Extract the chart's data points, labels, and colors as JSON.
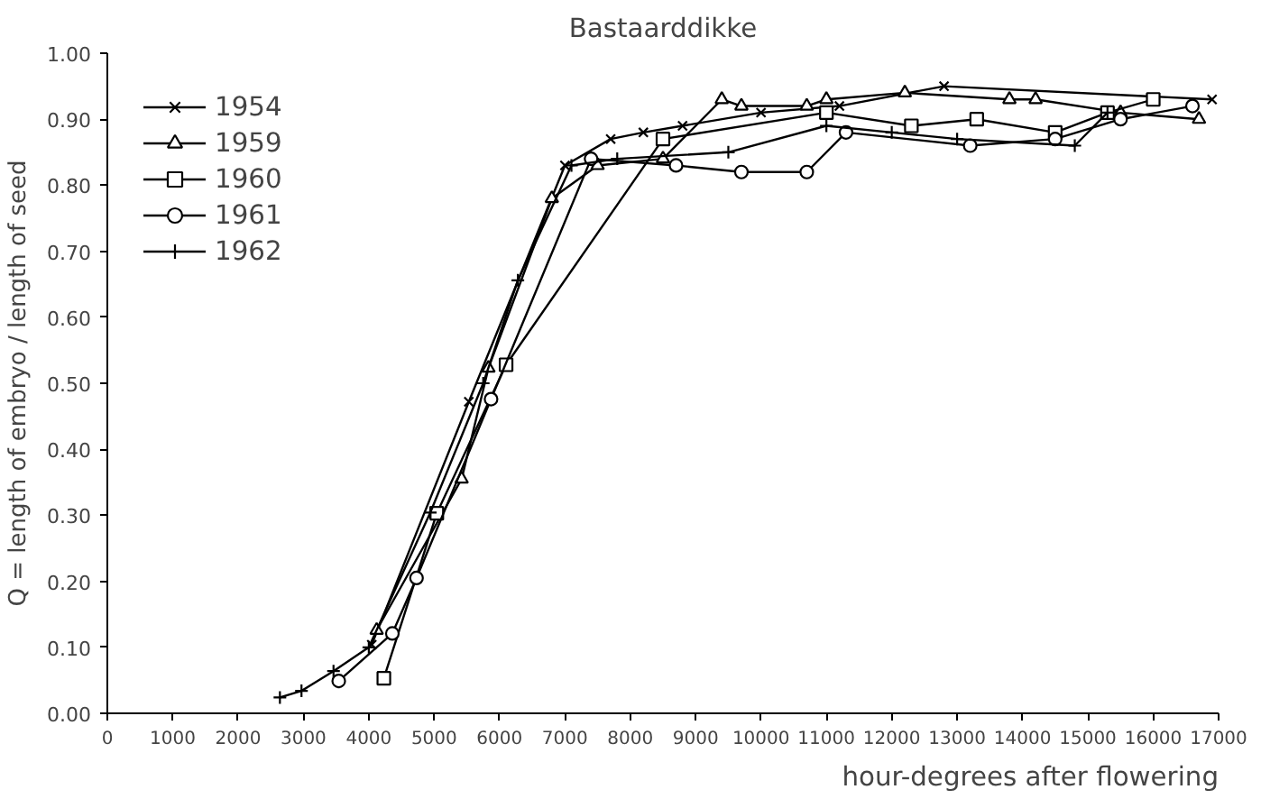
{
  "chart_data": {
    "type": "line",
    "title": "Bastaarddikke",
    "xlabel": "hour-degrees after flowering",
    "ylabel": "Q = length of embryo / length of seed",
    "xlim": [
      0,
      17000
    ],
    "xticks": [
      0,
      1000,
      2000,
      3000,
      4000,
      5000,
      6000,
      7000,
      8000,
      9000,
      10000,
      11000,
      12000,
      13000,
      14000,
      15000,
      16000,
      17000
    ],
    "ylim": [
      0,
      1
    ],
    "yticks": [
      {
        "value": 0,
        "label": "0.00"
      },
      {
        "value": 0.1,
        "label": "0.10"
      },
      {
        "value": 0.2,
        "label": "0.20"
      },
      {
        "value": 0.3,
        "label": "0.30"
      },
      {
        "value": 0.4,
        "label": "0.40"
      },
      {
        "value": 0.5,
        "label": "0.50"
      },
      {
        "value": 0.6,
        "label": "0.60"
      },
      {
        "value": 0.7,
        "label": "0.70"
      },
      {
        "value": 0.8,
        "label": "0.80"
      },
      {
        "value": 0.9,
        "label": "0.90"
      },
      {
        "value": 1,
        "label": "1.00"
      }
    ],
    "grid": false,
    "legend": "top left",
    "line_style": "solid",
    "series": [
      {
        "name": "1954",
        "color": "#000000",
        "marker": "x",
        "x": [
          4045,
          5530,
          7000,
          7700,
          8200,
          8800,
          10000,
          11200,
          12800,
          16900
        ],
        "values": [
          0.104,
          0.472,
          0.83,
          0.87,
          0.88,
          0.89,
          0.91,
          0.92,
          0.95,
          0.93
        ]
      },
      {
        "name": "1959",
        "color": "#000000",
        "marker": "triangle",
        "x": [
          4120,
          5420,
          5830,
          6800,
          7500,
          8500,
          9400,
          9700,
          10700,
          11000,
          12200,
          13800,
          14200,
          15500,
          16700
        ],
        "values": [
          0.126,
          0.355,
          0.523,
          0.78,
          0.83,
          0.84,
          0.93,
          0.92,
          0.92,
          0.93,
          0.94,
          0.93,
          0.93,
          0.91,
          0.9
        ]
      },
      {
        "name": "1960",
        "color": "#000000",
        "marker": "square",
        "x": [
          4230,
          5040,
          6100,
          8500,
          11000,
          12300,
          13300,
          14500,
          15300,
          16000
        ],
        "values": [
          0.053,
          0.303,
          0.528,
          0.87,
          0.91,
          0.89,
          0.9,
          0.88,
          0.91,
          0.93
        ]
      },
      {
        "name": "1961",
        "color": "#000000",
        "marker": "circle",
        "x": [
          3540,
          4360,
          4730,
          5870,
          7400,
          8700,
          9700,
          10700,
          11300,
          13200,
          14500,
          15500,
          16600
        ],
        "values": [
          0.049,
          0.121,
          0.205,
          0.476,
          0.84,
          0.83,
          0.82,
          0.82,
          0.88,
          0.86,
          0.87,
          0.9,
          0.92
        ]
      },
      {
        "name": "1962",
        "color": "#000000",
        "marker": "cross",
        "x": [
          2640,
          2970,
          3460,
          4000,
          4940,
          5750,
          6280,
          7100,
          7800,
          9500,
          11000,
          12000,
          13000,
          14800,
          15300
        ],
        "values": [
          0.024,
          0.034,
          0.064,
          0.1,
          0.304,
          0.5,
          0.656,
          0.83,
          0.84,
          0.85,
          0.89,
          0.88,
          0.87,
          0.86,
          0.91
        ]
      }
    ]
  }
}
